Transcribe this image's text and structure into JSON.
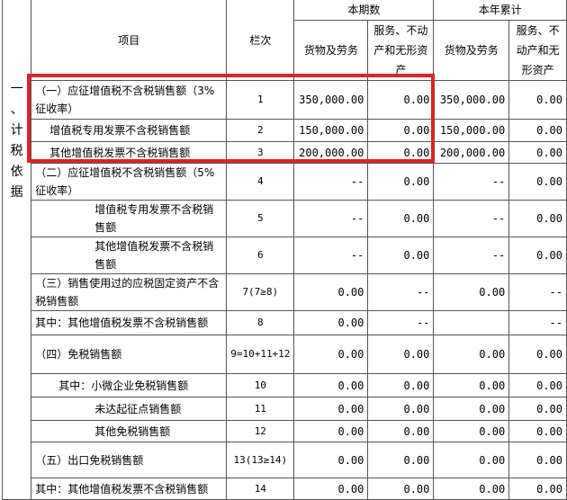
{
  "side_label": "一、计税依据",
  "header": {
    "item": "项目",
    "line_no": "栏次",
    "current_period": "本期数",
    "year_total": "本年累计",
    "goods": "货物及劳务",
    "services_current": "服务、不动产和无形资产",
    "goods_year": "货物及劳务",
    "services_year": "服务、不动产和无形资产"
  },
  "rows": [
    {
      "item": "（一）应征增值税不含税销售额（3%征收率）",
      "line": "1",
      "v": [
        "350,000.00",
        "0.00",
        "350,000.00",
        "0.00"
      ]
    },
    {
      "item": "增值税专用发票不含税销售额",
      "line": "2",
      "v": [
        "150,000.00",
        "0.00",
        "150,000.00",
        "0.00"
      ]
    },
    {
      "item": "其他增值税发票不含税销售额",
      "line": "3",
      "v": [
        "200,000.00",
        "0.00",
        "200,000.00",
        "0.00"
      ]
    },
    {
      "item": "（二）应征增值税不含税销售额（5%征收率）",
      "line": "4",
      "v": [
        "--",
        "0.00",
        "--",
        "0.00"
      ]
    },
    {
      "item": "增值税专用发票不含税销售额",
      "line": "5",
      "v": [
        "--",
        "0.00",
        "--",
        "0.00"
      ]
    },
    {
      "item": "其他增值税发票不含税销售额",
      "line": "6",
      "v": [
        "--",
        "0.00",
        "--",
        "0.00"
      ]
    },
    {
      "item": "（三）销售使用过的应税固定资产不含税销售额",
      "line": "7(7≥8)",
      "v": [
        "0.00",
        "--",
        "0.00",
        "--"
      ]
    },
    {
      "item": "其中：其他增值税发票不含税销售额",
      "line": "8",
      "v": [
        "0.00",
        "--",
        "",
        "--"
      ]
    },
    {
      "item": "（四）免税销售额",
      "line": "9=10+11+12",
      "v": [
        "0.00",
        "0.00",
        "0.00",
        "0.00"
      ]
    },
    {
      "item": "其中：小微企业免税销售额",
      "line": "10",
      "v": [
        "0.00",
        "0.00",
        "0.00",
        "0.00"
      ]
    },
    {
      "item": "未达起征点销售额",
      "line": "11",
      "v": [
        "0.00",
        "0.00",
        "0.00",
        "0.00"
      ]
    },
    {
      "item": "其他免税销售额",
      "line": "12",
      "v": [
        "0.00",
        "0.00",
        "0.00",
        "0.00"
      ]
    },
    {
      "item": "（五）出口免税销售额",
      "line": "13(13≥14)",
      "v": [
        "0.00",
        "0.00",
        "0.00",
        "0.00"
      ]
    },
    {
      "item": "其中：其他增值税发票不含税销售额",
      "line": "14",
      "v": [
        "0.00",
        "0.00",
        "0.00",
        "0.00"
      ]
    }
  ],
  "highlight_color": "#e0202c"
}
